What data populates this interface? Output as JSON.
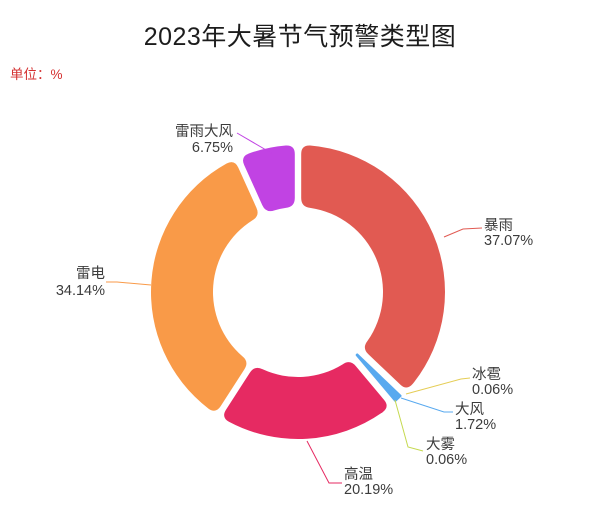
{
  "title": "2023年大暑节气预警类型图",
  "unit_label": "单位：%",
  "unit_label_color": "#d43030",
  "background_color": "#ffffff",
  "chart_data": {
    "type": "pie",
    "subtype": "donut",
    "title": "2023年大暑节气预警类型图",
    "unit": "%",
    "legend": "off",
    "label_format": "name newline percent",
    "start_angle_deg": 90,
    "direction": "clockwise",
    "categories": [
      "暴雨",
      "冰雹",
      "大风",
      "大雾",
      "高温",
      "雷电",
      "雷雨大风"
    ],
    "values": [
      37.07,
      0.06,
      1.72,
      0.06,
      20.19,
      34.14,
      6.75
    ],
    "value_labels": [
      "37.07%",
      "0.06%",
      "1.72%",
      "0.06%",
      "20.19%",
      "34.14%",
      "6.75%"
    ],
    "colors": [
      "#e15a52",
      "#e5cd55",
      "#58a9ef",
      "#c5d94f",
      "#e62a62",
      "#f99a48",
      "#c143e3"
    ]
  }
}
